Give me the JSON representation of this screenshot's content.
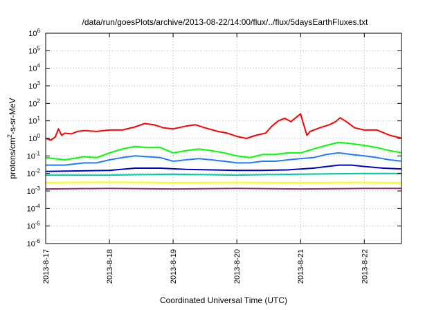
{
  "chart_data": {
    "type": "line",
    "title": "/data/run/goesPlots/archive/2013-08-22/14:00/flux/../flux/5daysEarthFluxes.txt",
    "xlabel": "Coordinated Universal Time (UTC)",
    "ylabel": "protons/cm2-s-sr-MeV",
    "ylabel_main": "protons/cm",
    "ylabel_sup": "2",
    "ylabel_tail": "-s-sr-MeV",
    "y_scale": "log",
    "ylim": [
      1e-06,
      1000000.0
    ],
    "y_ticks": [
      {
        "value": 1e-06,
        "base": "10",
        "exp": "-6"
      },
      {
        "value": 1e-05,
        "base": "10",
        "exp": "-5"
      },
      {
        "value": 0.0001,
        "base": "10",
        "exp": "-4"
      },
      {
        "value": 0.001,
        "base": "10",
        "exp": "-3"
      },
      {
        "value": 0.01,
        "base": "10",
        "exp": "-2"
      },
      {
        "value": 0.1,
        "base": "10",
        "exp": "-1"
      },
      {
        "value": 1,
        "base": "10",
        "exp": "0"
      },
      {
        "value": 10.0,
        "base": "10",
        "exp": "1"
      },
      {
        "value": 100.0,
        "base": "10",
        "exp": "2"
      },
      {
        "value": 1000.0,
        "base": "10",
        "exp": "3"
      },
      {
        "value": 10000.0,
        "base": "10",
        "exp": "4"
      },
      {
        "value": 100000.0,
        "base": "10",
        "exp": "5"
      },
      {
        "value": 1000000.0,
        "base": "10",
        "exp": "6"
      }
    ],
    "x_scale": "time (days)",
    "xlim": [
      "2013-08-17 00:00",
      "2013-08-22 14:00"
    ],
    "x_ticks": [
      {
        "label": "2013-8-17",
        "day": 0
      },
      {
        "label": "2013-8-18",
        "day": 1
      },
      {
        "label": "2013-8-19",
        "day": 2
      },
      {
        "label": "2013-8-20",
        "day": 3
      },
      {
        "label": "2013-8-21",
        "day": 4
      },
      {
        "label": "2013-8-22",
        "day": 5
      }
    ],
    "grid": true,
    "legend": "none",
    "series": [
      {
        "color": "#ff0000",
        "x": [
          0,
          0.08,
          0.15,
          0.2,
          0.25,
          0.3,
          0.4,
          0.5,
          0.6,
          0.8,
          1.0,
          1.2,
          1.4,
          1.55,
          1.7,
          1.85,
          2.0,
          2.2,
          2.35,
          2.5,
          2.7,
          2.85,
          3.0,
          3.15,
          3.3,
          3.45,
          3.55,
          3.65,
          3.75,
          3.85,
          3.95,
          4.0,
          4.05,
          4.1,
          4.15,
          4.3,
          4.45,
          4.55,
          4.62,
          4.7,
          4.85,
          5.0,
          5.2,
          5.4,
          5.6
        ],
        "y": [
          1.0,
          0.8,
          1.2,
          3.5,
          1.5,
          2.0,
          1.8,
          2.5,
          2.8,
          2.5,
          3.0,
          3.0,
          4.5,
          7.0,
          6.0,
          4.0,
          3.5,
          5.0,
          6.0,
          4.0,
          2.5,
          2.0,
          1.3,
          1.0,
          1.5,
          2.0,
          5.0,
          10.0,
          14.0,
          9.0,
          18.0,
          25.0,
          6.0,
          1.5,
          2.5,
          4.0,
          6.0,
          9.0,
          15.0,
          10.0,
          4.0,
          3.0,
          3.0,
          1.5,
          1.0
        ]
      },
      {
        "color": "#00ff00",
        "x": [
          0,
          0.3,
          0.6,
          0.8,
          1.0,
          1.2,
          1.4,
          1.6,
          1.8,
          2.0,
          2.2,
          2.4,
          2.6,
          2.8,
          3.0,
          3.2,
          3.4,
          3.6,
          3.8,
          4.0,
          4.2,
          4.4,
          4.6,
          4.8,
          5.0,
          5.2,
          5.4,
          5.6
        ],
        "y": [
          0.08,
          0.06,
          0.09,
          0.08,
          0.15,
          0.25,
          0.35,
          0.3,
          0.3,
          0.15,
          0.2,
          0.25,
          0.2,
          0.15,
          0.1,
          0.08,
          0.12,
          0.12,
          0.15,
          0.15,
          0.25,
          0.4,
          0.6,
          0.5,
          0.4,
          0.3,
          0.2,
          0.15
        ]
      },
      {
        "color": "#1e7cff",
        "x": [
          0,
          0.3,
          0.6,
          0.8,
          1.0,
          1.2,
          1.4,
          1.6,
          1.8,
          2.0,
          2.2,
          2.4,
          2.6,
          2.8,
          3.0,
          3.2,
          3.4,
          3.6,
          3.8,
          4.0,
          4.2,
          4.4,
          4.6,
          4.8,
          5.0,
          5.2,
          5.4,
          5.6
        ],
        "y": [
          0.03,
          0.03,
          0.04,
          0.04,
          0.06,
          0.08,
          0.1,
          0.09,
          0.08,
          0.05,
          0.06,
          0.07,
          0.06,
          0.05,
          0.04,
          0.04,
          0.05,
          0.05,
          0.06,
          0.07,
          0.08,
          0.12,
          0.15,
          0.12,
          0.1,
          0.08,
          0.06,
          0.05
        ]
      },
      {
        "color": "#0000cc",
        "x": [
          0,
          0.5,
          1.0,
          1.4,
          1.8,
          2.2,
          2.6,
          3.0,
          3.4,
          3.8,
          4.2,
          4.6,
          4.8,
          5.0,
          5.3,
          5.6
        ],
        "y": [
          0.013,
          0.014,
          0.015,
          0.02,
          0.02,
          0.017,
          0.016,
          0.015,
          0.015,
          0.016,
          0.02,
          0.03,
          0.03,
          0.025,
          0.02,
          0.018
        ]
      },
      {
        "color": "#00c8a0",
        "x": [
          0,
          1.0,
          2.0,
          3.0,
          4.0,
          5.0,
          5.6
        ],
        "y": [
          0.008,
          0.008,
          0.009,
          0.008,
          0.009,
          0.01,
          0.01
        ]
      },
      {
        "color": "#ffff00",
        "x": [
          0,
          1.0,
          2.0,
          3.0,
          4.0,
          5.0,
          5.6
        ],
        "y": [
          0.003,
          0.0032,
          0.003,
          0.0031,
          0.003,
          0.0031,
          0.003
        ]
      },
      {
        "color": "#8b2e6b",
        "x": [
          0,
          1.0,
          2.0,
          3.0,
          4.0,
          5.0,
          5.6
        ],
        "y": [
          0.0013,
          0.0014,
          0.0013,
          0.0014,
          0.0013,
          0.0014,
          0.0014
        ]
      }
    ]
  }
}
